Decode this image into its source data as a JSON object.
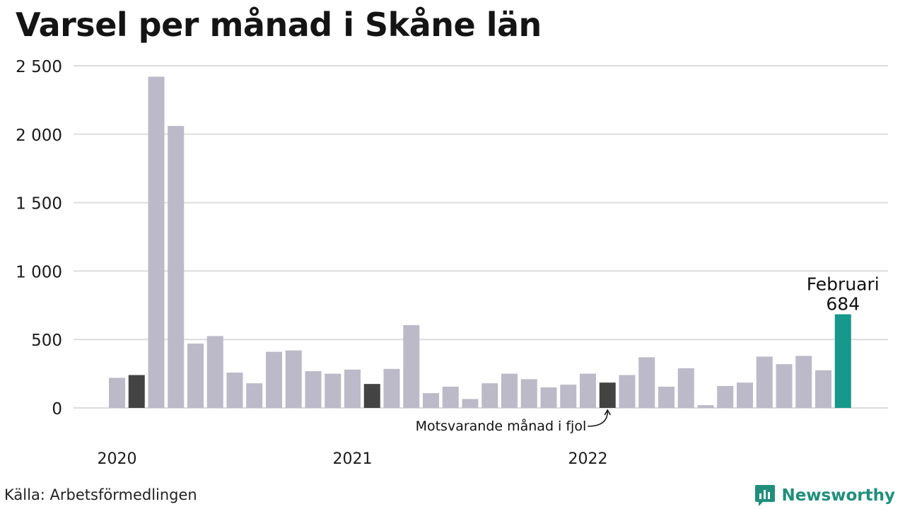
{
  "title": "Varsel per månad i Skåne län",
  "source": "Källa: Arbetsförmedlingen",
  "brand": "Newsworthy",
  "colors": {
    "bar": "#bcbac8",
    "bar_same_month": "#434343",
    "bar_latest": "#16988a",
    "grid": "#dddddd",
    "brand": "#1f8f7c"
  },
  "chart_data": {
    "type": "bar",
    "title": "Varsel per månad i Skåne län",
    "ylim": [
      0,
      2500
    ],
    "yticks": [
      0,
      500,
      1000,
      1500,
      2000,
      2500
    ],
    "ytick_labels": [
      "0",
      "500",
      "1 000",
      "1 500",
      "2 000",
      "2 500"
    ],
    "year_labels": [
      {
        "label": "2020",
        "index": 0
      },
      {
        "label": "2021",
        "index": 12
      },
      {
        "label": "2022",
        "index": 24
      }
    ],
    "grid": true,
    "categories": [
      "2020-01",
      "2020-02",
      "2020-03",
      "2020-04",
      "2020-05",
      "2020-06",
      "2020-07",
      "2020-08",
      "2020-09",
      "2020-10",
      "2020-11",
      "2020-12",
      "2021-01",
      "2021-02",
      "2021-03",
      "2021-04",
      "2021-05",
      "2021-06",
      "2021-07",
      "2021-08",
      "2021-09",
      "2021-10",
      "2021-11",
      "2021-12",
      "2022-01",
      "2022-02",
      "2022-03",
      "2022-04",
      "2022-05",
      "2022-06",
      "2022-07",
      "2022-08",
      "2022-09",
      "2022-10",
      "2022-11",
      "2022-12",
      "2023-01",
      "2023-02"
    ],
    "values": [
      220,
      240,
      2420,
      2060,
      470,
      525,
      258,
      180,
      410,
      420,
      268,
      250,
      280,
      175,
      285,
      605,
      108,
      155,
      65,
      180,
      250,
      210,
      150,
      170,
      250,
      185,
      240,
      370,
      155,
      290,
      20,
      160,
      185,
      375,
      320,
      380,
      275,
      684
    ],
    "same_month_indices": [
      1,
      13,
      25
    ],
    "latest_index": 37,
    "latest_label": "Februari",
    "latest_value_label": "684",
    "annotation": "Motsvarande månad i fjol"
  }
}
